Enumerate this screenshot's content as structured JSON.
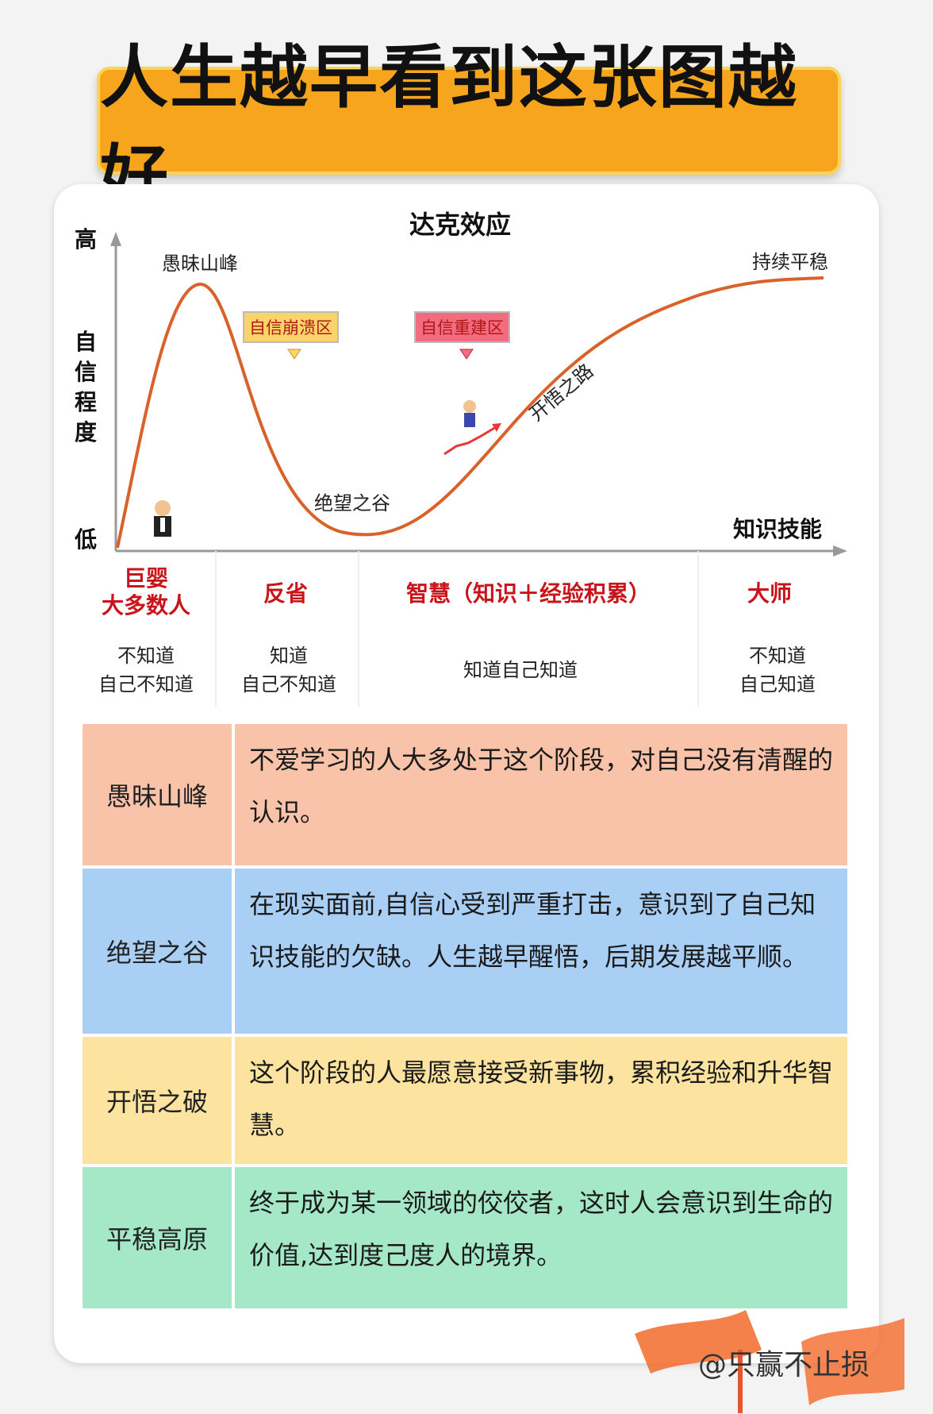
{
  "title": "人生越早看到这张图越好",
  "chart": {
    "title": "达克效应",
    "y_axis": {
      "high": "高",
      "label": "自信程度",
      "low": "低"
    },
    "x_axis": {
      "label": "知识技能"
    },
    "points": {
      "peak": "愚昧山峰",
      "valley": "绝望之谷",
      "plateau": "持续平稳",
      "path": "开悟之路"
    },
    "zones": {
      "collapse": "自信崩溃区",
      "rebuild": "自信重建区"
    },
    "colors": {
      "curve": "#d9622b",
      "axis": "#999999",
      "collapse_tag": "#fbd36b",
      "rebuild_tag": "#f26b7e"
    }
  },
  "stages": [
    {
      "name_1": "巨婴",
      "name_2": "大多数人",
      "know_1": "不知道",
      "know_2": "自己不知道"
    },
    {
      "name_1": "反省",
      "name_2": "",
      "know_1": "知道",
      "know_2": "自己不知道"
    },
    {
      "name_1": "智慧（知识＋经验积累）",
      "name_2": "",
      "know_1": "知道自己知道",
      "know_2": ""
    },
    {
      "name_1": "大师",
      "name_2": "",
      "know_1": "不知道",
      "know_2": "自己知道"
    }
  ],
  "table": [
    {
      "name": "愚昧山峰",
      "desc": "不爱学习的人大多处于这个阶段，对自己没有清醒的认识。"
    },
    {
      "name": "绝望之谷",
      "desc": "在现实面前,自信心受到严重打击，意识到了自己知识技能的欠缺。人生越早醒悟，后期发展越平顺。"
    },
    {
      "name": "开悟之破",
      "desc": "这个阶段的人最愿意接受新事物，累积经验和升华智慧。"
    },
    {
      "name": "平稳高原",
      "desc": "终于成为某一领域的佼佼者，这时人会意识到生命的价值,达到度己度人的境界。"
    }
  ],
  "watermark": "@只赢不止损"
}
